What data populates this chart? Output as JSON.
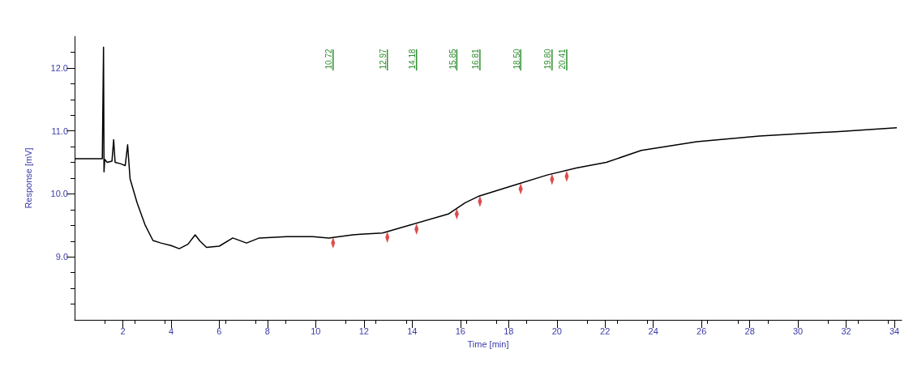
{
  "chart_data": {
    "type": "line",
    "xlabel": "Time [min]",
    "ylabel": "Response [mV]",
    "xlim": [
      0,
      34.3
    ],
    "ylim": [
      8.0,
      12.5
    ],
    "xticks": [
      2,
      4,
      6,
      8,
      10,
      12,
      14,
      16,
      18,
      20,
      22,
      24,
      26,
      28,
      30,
      32,
      34
    ],
    "yticks": [
      {
        "value": 9,
        "label": "9.0"
      },
      {
        "value": 10,
        "label": "10.0"
      },
      {
        "value": 11,
        "label": "11.0"
      },
      {
        "value": 12,
        "label": "12.0"
      }
    ],
    "grid": false,
    "marker": "none",
    "line_style": "solid",
    "series": [
      {
        "type": "scatter",
        "marker": "diamond",
        "color": "#d42020",
        "x": [
          10.72,
          12.97,
          14.18,
          15.85,
          16.81,
          18.5,
          19.8,
          20.41
        ],
        "values": [
          9.22,
          9.31,
          9.44,
          9.68,
          9.88,
          10.08,
          10.23,
          10.28
        ]
      },
      {
        "color": "#000000",
        "x": [
          0,
          0.6,
          1.15,
          1.2,
          1.22,
          1.25,
          1.35,
          1.55,
          1.62,
          1.68,
          1.9,
          2.1,
          2.2,
          2.3,
          2.59,
          2.92,
          3.25,
          3.58,
          4.0,
          4.34,
          4.7,
          5.0,
          5.2,
          5.47,
          6.0,
          6.56,
          7.13,
          7.66,
          8.8,
          9.88,
          10.54,
          11.54,
          11.87,
          12.77,
          13.96,
          15.5,
          16.2,
          16.74,
          18.17,
          19.6,
          20.8,
          22.05,
          23.5,
          25.8,
          28.4,
          31.7,
          34.1
        ],
        "values": [
          10.56,
          10.56,
          10.56,
          12.33,
          10.35,
          10.55,
          10.5,
          10.52,
          10.86,
          10.5,
          10.48,
          10.45,
          10.78,
          10.24,
          9.86,
          9.51,
          9.26,
          9.22,
          9.18,
          9.13,
          9.2,
          9.35,
          9.25,
          9.15,
          9.17,
          9.3,
          9.22,
          9.3,
          9.32,
          9.32,
          9.3,
          9.35,
          9.36,
          9.38,
          9.51,
          9.68,
          9.86,
          9.96,
          10.13,
          10.3,
          10.41,
          10.5,
          10.69,
          10.83,
          10.92,
          10.99,
          11.05
        ]
      }
    ],
    "ref_lines": [
      {
        "axis": "x",
        "value": 10.72,
        "label": "10.72",
        "color": "#2f8f2f"
      },
      {
        "axis": "x",
        "value": 12.97,
        "label": "12.97",
        "color": "#2f8f2f"
      },
      {
        "axis": "x",
        "value": 14.18,
        "label": "14.18",
        "color": "#2f8f2f"
      },
      {
        "axis": "x",
        "value": 15.85,
        "label": "15.85",
        "color": "#2f8f2f"
      },
      {
        "axis": "x",
        "value": 16.81,
        "label": "16.81",
        "color": "#2f8f2f"
      },
      {
        "axis": "x",
        "value": 18.5,
        "label": "18.50",
        "color": "#2f8f2f"
      },
      {
        "axis": "x",
        "value": 19.8,
        "label": "19.80",
        "color": "#2f8f2f"
      },
      {
        "axis": "x",
        "value": 20.41,
        "label": "20.41",
        "color": "#2f8f2f"
      }
    ]
  }
}
